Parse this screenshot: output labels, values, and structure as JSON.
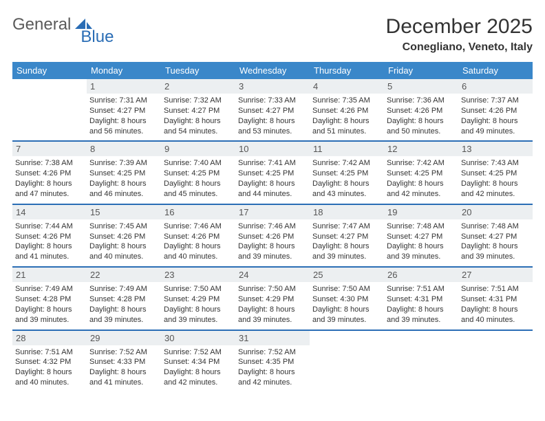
{
  "logo": {
    "general": "General",
    "blue": "Blue"
  },
  "title": "December 2025",
  "location": "Conegliano, Veneto, Italy",
  "colors": {
    "header_bg": "#3a87c9",
    "border": "#2a6db5",
    "daynum_bg": "#eceff1",
    "text": "#333333",
    "logo_gray": "#5a5a5a",
    "logo_blue": "#2a6db5",
    "background": "#ffffff"
  },
  "weekdays": [
    "Sunday",
    "Monday",
    "Tuesday",
    "Wednesday",
    "Thursday",
    "Friday",
    "Saturday"
  ],
  "weeks": [
    [
      {
        "num": "",
        "sunrise": "",
        "sunset": "",
        "daylight": ""
      },
      {
        "num": "1",
        "sunrise": "7:31 AM",
        "sunset": "4:27 PM",
        "daylight": "8 hours and 56 minutes."
      },
      {
        "num": "2",
        "sunrise": "7:32 AM",
        "sunset": "4:27 PM",
        "daylight": "8 hours and 54 minutes."
      },
      {
        "num": "3",
        "sunrise": "7:33 AM",
        "sunset": "4:27 PM",
        "daylight": "8 hours and 53 minutes."
      },
      {
        "num": "4",
        "sunrise": "7:35 AM",
        "sunset": "4:26 PM",
        "daylight": "8 hours and 51 minutes."
      },
      {
        "num": "5",
        "sunrise": "7:36 AM",
        "sunset": "4:26 PM",
        "daylight": "8 hours and 50 minutes."
      },
      {
        "num": "6",
        "sunrise": "7:37 AM",
        "sunset": "4:26 PM",
        "daylight": "8 hours and 49 minutes."
      }
    ],
    [
      {
        "num": "7",
        "sunrise": "7:38 AM",
        "sunset": "4:26 PM",
        "daylight": "8 hours and 47 minutes."
      },
      {
        "num": "8",
        "sunrise": "7:39 AM",
        "sunset": "4:25 PM",
        "daylight": "8 hours and 46 minutes."
      },
      {
        "num": "9",
        "sunrise": "7:40 AM",
        "sunset": "4:25 PM",
        "daylight": "8 hours and 45 minutes."
      },
      {
        "num": "10",
        "sunrise": "7:41 AM",
        "sunset": "4:25 PM",
        "daylight": "8 hours and 44 minutes."
      },
      {
        "num": "11",
        "sunrise": "7:42 AM",
        "sunset": "4:25 PM",
        "daylight": "8 hours and 43 minutes."
      },
      {
        "num": "12",
        "sunrise": "7:42 AM",
        "sunset": "4:25 PM",
        "daylight": "8 hours and 42 minutes."
      },
      {
        "num": "13",
        "sunrise": "7:43 AM",
        "sunset": "4:25 PM",
        "daylight": "8 hours and 42 minutes."
      }
    ],
    [
      {
        "num": "14",
        "sunrise": "7:44 AM",
        "sunset": "4:26 PM",
        "daylight": "8 hours and 41 minutes."
      },
      {
        "num": "15",
        "sunrise": "7:45 AM",
        "sunset": "4:26 PM",
        "daylight": "8 hours and 40 minutes."
      },
      {
        "num": "16",
        "sunrise": "7:46 AM",
        "sunset": "4:26 PM",
        "daylight": "8 hours and 40 minutes."
      },
      {
        "num": "17",
        "sunrise": "7:46 AM",
        "sunset": "4:26 PM",
        "daylight": "8 hours and 39 minutes."
      },
      {
        "num": "18",
        "sunrise": "7:47 AM",
        "sunset": "4:27 PM",
        "daylight": "8 hours and 39 minutes."
      },
      {
        "num": "19",
        "sunrise": "7:48 AM",
        "sunset": "4:27 PM",
        "daylight": "8 hours and 39 minutes."
      },
      {
        "num": "20",
        "sunrise": "7:48 AM",
        "sunset": "4:27 PM",
        "daylight": "8 hours and 39 minutes."
      }
    ],
    [
      {
        "num": "21",
        "sunrise": "7:49 AM",
        "sunset": "4:28 PM",
        "daylight": "8 hours and 39 minutes."
      },
      {
        "num": "22",
        "sunrise": "7:49 AM",
        "sunset": "4:28 PM",
        "daylight": "8 hours and 39 minutes."
      },
      {
        "num": "23",
        "sunrise": "7:50 AM",
        "sunset": "4:29 PM",
        "daylight": "8 hours and 39 minutes."
      },
      {
        "num": "24",
        "sunrise": "7:50 AM",
        "sunset": "4:29 PM",
        "daylight": "8 hours and 39 minutes."
      },
      {
        "num": "25",
        "sunrise": "7:50 AM",
        "sunset": "4:30 PM",
        "daylight": "8 hours and 39 minutes."
      },
      {
        "num": "26",
        "sunrise": "7:51 AM",
        "sunset": "4:31 PM",
        "daylight": "8 hours and 39 minutes."
      },
      {
        "num": "27",
        "sunrise": "7:51 AM",
        "sunset": "4:31 PM",
        "daylight": "8 hours and 40 minutes."
      }
    ],
    [
      {
        "num": "28",
        "sunrise": "7:51 AM",
        "sunset": "4:32 PM",
        "daylight": "8 hours and 40 minutes."
      },
      {
        "num": "29",
        "sunrise": "7:52 AM",
        "sunset": "4:33 PM",
        "daylight": "8 hours and 41 minutes."
      },
      {
        "num": "30",
        "sunrise": "7:52 AM",
        "sunset": "4:34 PM",
        "daylight": "8 hours and 42 minutes."
      },
      {
        "num": "31",
        "sunrise": "7:52 AM",
        "sunset": "4:35 PM",
        "daylight": "8 hours and 42 minutes."
      },
      {
        "num": "",
        "sunrise": "",
        "sunset": "",
        "daylight": ""
      },
      {
        "num": "",
        "sunrise": "",
        "sunset": "",
        "daylight": ""
      },
      {
        "num": "",
        "sunrise": "",
        "sunset": "",
        "daylight": ""
      }
    ]
  ]
}
